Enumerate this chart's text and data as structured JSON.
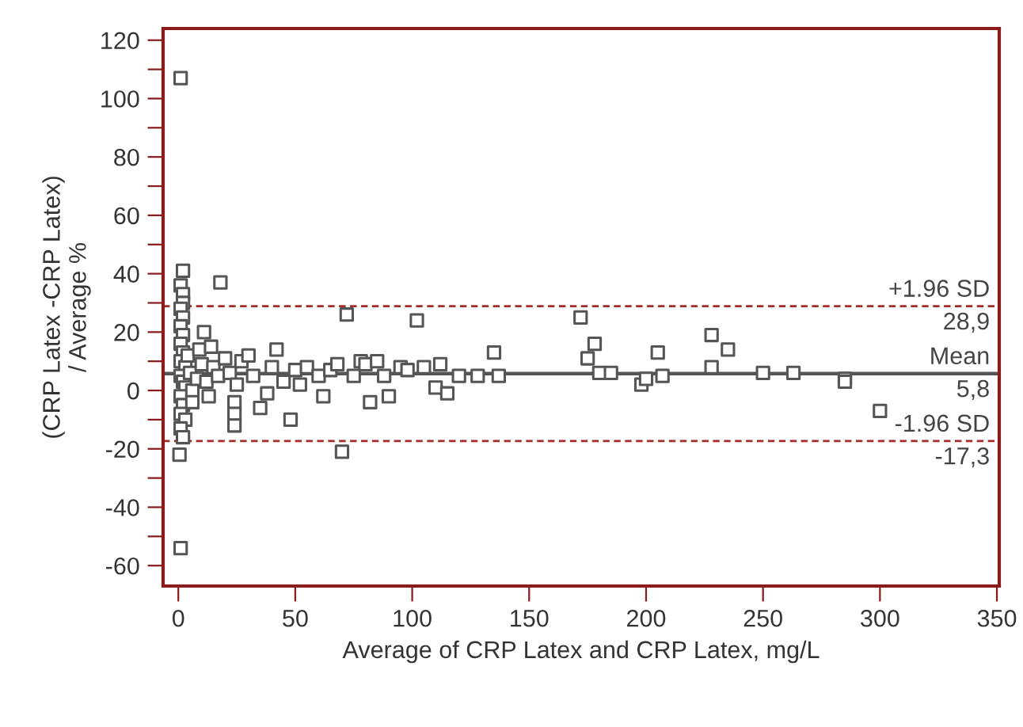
{
  "chart_data": {
    "type": "scatter",
    "xlabel": "Average of CRP Latex and CRP Latex, mg/L",
    "ylabel": "(CRP Latex -CRP Latex)\n/ Average %",
    "marker": "square",
    "series": [
      {
        "color": "#555555",
        "x": [
          1,
          2,
          1,
          2,
          2,
          1,
          2,
          1,
          2,
          1,
          2,
          1,
          3,
          1,
          2,
          3,
          1,
          2,
          1,
          3,
          1,
          2,
          0.5,
          1,
          4,
          5,
          6,
          6,
          8,
          9,
          10,
          12,
          11,
          14,
          15,
          17,
          13,
          18,
          20,
          22,
          24,
          24,
          24,
          25,
          27,
          30,
          32,
          35,
          38,
          40,
          42,
          45,
          48,
          50,
          52,
          55,
          60,
          62,
          65,
          68,
          70,
          72,
          75,
          78,
          80,
          82,
          85,
          88,
          90,
          95,
          98,
          102,
          105,
          110,
          112,
          115,
          120,
          128,
          135,
          137,
          172,
          175,
          178,
          180,
          185,
          198,
          200,
          205,
          207,
          228,
          228,
          235,
          250,
          263,
          285,
          285,
          300
        ],
        "values": [
          107,
          41,
          36,
          33,
          30,
          28,
          25,
          22,
          19,
          16,
          13,
          10,
          8,
          5,
          3,
          1,
          -2,
          -5,
          -8,
          -10,
          -13,
          -16,
          -22,
          -54,
          12,
          6,
          0,
          -4,
          4,
          14,
          9,
          3,
          20,
          15,
          8,
          5,
          -2,
          37,
          11,
          6,
          -4,
          -8,
          -12,
          2,
          10,
          12,
          5,
          -6,
          -1,
          8,
          14,
          3,
          -10,
          7,
          2,
          8,
          5,
          -2,
          7,
          9,
          -21,
          26,
          5,
          10,
          9,
          -4,
          10,
          5,
          -2,
          8,
          7,
          24,
          8,
          1,
          9,
          -1,
          5,
          5,
          13,
          5,
          25,
          11,
          16,
          6,
          6,
          2,
          4,
          13,
          5,
          19,
          8,
          14,
          6,
          6,
          4,
          3,
          -7
        ]
      }
    ],
    "ref_lines": [
      {
        "axis": "y",
        "value": 28.9,
        "label": "+1.96 SD",
        "color": "#a52a2a",
        "line_style": "dashed"
      },
      {
        "axis": "y",
        "value": 5.8,
        "label": "Mean",
        "color": "#555555",
        "line_style": "solid"
      },
      {
        "axis": "y",
        "value": -17.3,
        "label": "-1.96 SD",
        "color": "#a52a2a",
        "line_style": "dashed"
      }
    ],
    "annotations": [
      {
        "text": "28,9",
        "y": 28.9
      },
      {
        "text": "5,8",
        "y": 5.8
      },
      {
        "text": "-17,3",
        "y": -17.3
      }
    ],
    "xlim": [
      -6.5,
      351
    ],
    "ylim": [
      -67,
      124
    ],
    "xticks": [
      0,
      50,
      100,
      150,
      200,
      250,
      300,
      350
    ],
    "yticks": [
      -60,
      {
        "value": -50,
        "label": null
      },
      -40,
      {
        "value": -30,
        "label": null
      },
      -20,
      {
        "value": -10,
        "label": null
      },
      0,
      {
        "value": 10,
        "label": null
      },
      20,
      {
        "value": 30,
        "label": null
      },
      40,
      {
        "value": 50,
        "label": null
      },
      60,
      {
        "value": 70,
        "label": null
      },
      80,
      {
        "value": 90,
        "label": null
      },
      100,
      {
        "value": 110,
        "label": null
      },
      120
    ],
    "grid": false,
    "legend": false
  }
}
